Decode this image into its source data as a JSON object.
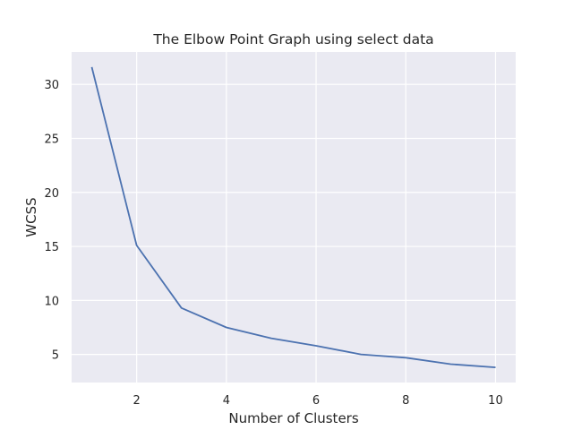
{
  "chart_data": {
    "type": "line",
    "title": "The Elbow Point Graph using select data",
    "xlabel": "Number of Clusters",
    "ylabel": "WCSS",
    "xlim": [
      0.55,
      10.45
    ],
    "ylim": [
      2.4,
      33.0
    ],
    "xticks": [
      2,
      4,
      6,
      8,
      10
    ],
    "yticks": [
      5,
      10,
      15,
      20,
      25,
      30
    ],
    "grid": true,
    "colors": {
      "background": "#eaeaf2",
      "grid": "#ffffff",
      "line": "#4c72b0"
    },
    "series": [
      {
        "x": [
          1,
          2,
          3,
          4,
          5,
          6,
          7,
          8,
          9,
          10
        ],
        "values": [
          31.6,
          15.1,
          9.3,
          7.5,
          6.5,
          5.8,
          5.0,
          4.7,
          4.1,
          3.8
        ]
      }
    ]
  }
}
